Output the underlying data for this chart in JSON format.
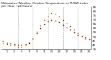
{
  "title_line1": "Milwaukee Weather Outdoor Temperature vs THSW Index",
  "title_line2": "per Hour  (24 Hours)",
  "hours": [
    0,
    1,
    2,
    3,
    4,
    5,
    6,
    7,
    8,
    9,
    10,
    11,
    12,
    13,
    14,
    15,
    16,
    17,
    18,
    19,
    20,
    21,
    22,
    23
  ],
  "temp": [
    44,
    43,
    42,
    41,
    40,
    40,
    41,
    43,
    48,
    54,
    60,
    65,
    68,
    70,
    69,
    67,
    64,
    61,
    58,
    55,
    52,
    50,
    48,
    47
  ],
  "thsw": [
    42,
    41,
    40,
    39,
    38,
    38,
    39,
    42,
    48,
    56,
    63,
    70,
    75,
    78,
    77,
    74,
    70,
    66,
    62,
    58,
    54,
    51,
    49,
    47
  ],
  "temp_color": "#cc0000",
  "thsw_color": "#ff8800",
  "bg_color": "#ffffff",
  "grid_color": "#999999",
  "ylim_min": 35,
  "ylim_max": 85,
  "title_fontsize": 3.2,
  "tick_fontsize": 3.0,
  "grid_positions": [
    4,
    8,
    12,
    16,
    20
  ],
  "marker_size": 1.5,
  "black_marker_size": 1.0
}
